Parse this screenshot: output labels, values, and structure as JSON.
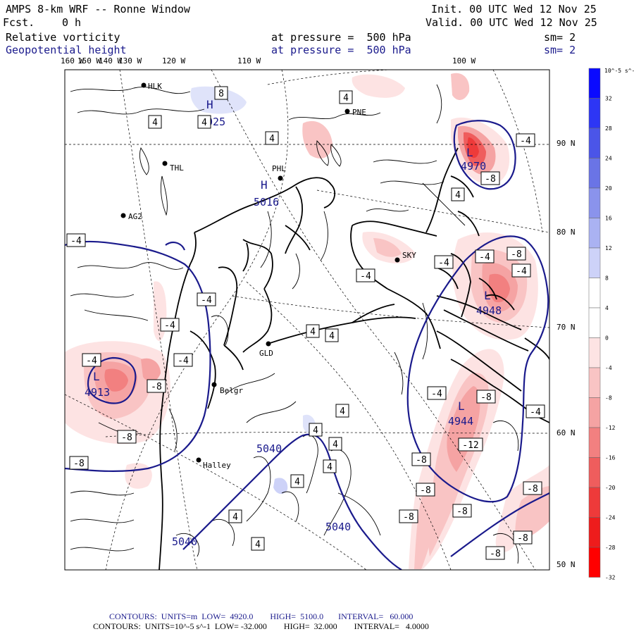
{
  "header": {
    "model": "AMPS 8-km WRF -- Ronne Window",
    "init": "Init. 00 UTC Wed 12 Nov 25",
    "fcst_label": "Fcst.",
    "fcst_value": "0 h",
    "valid": "Valid. 00 UTC Wed 12 Nov 25",
    "field1": {
      "name": "Relative vorticity",
      "level": "at pressure =  500 hPa",
      "sm": "sm= 2"
    },
    "field2": {
      "name": "Geopotential height",
      "level": "at pressure =  500 hPa",
      "sm": "sm= 2"
    }
  },
  "lon_labels": [
    {
      "text": "160 W"
    },
    {
      "text": "150 W"
    },
    {
      "text": "140 W"
    },
    {
      "text": "130 W"
    },
    {
      "text": "120 W"
    },
    {
      "text": "110 W"
    },
    {
      "text": "100 W"
    }
  ],
  "lat_labels": [
    "90 N",
    "80 N",
    "70 N",
    "60 N",
    "50 N"
  ],
  "stations": [
    {
      "id": "HLK"
    },
    {
      "id": "PNE"
    },
    {
      "id": "THL"
    },
    {
      "id": "PHL"
    },
    {
      "id": "AG2"
    },
    {
      "id": "SKY"
    },
    {
      "id": "GLD"
    },
    {
      "id": "Belgr"
    },
    {
      "id": "Halley"
    }
  ],
  "pressure_centers": [
    {
      "letter": "H",
      "value": "5025"
    },
    {
      "letter": "H",
      "value": "5016"
    },
    {
      "letter": "L",
      "value": "4913"
    },
    {
      "letter": "L",
      "value": "4944"
    },
    {
      "letter": "L",
      "value": "4948"
    },
    {
      "letter": "L",
      "value": "4970"
    }
  ],
  "height_labels": [
    "5040",
    "5040",
    "5040"
  ],
  "vort_labels": [
    "8",
    "4",
    "4",
    "4",
    "4",
    "4",
    "-4",
    "-4",
    "-4",
    "-4",
    "-4",
    "-4",
    "-4",
    "-4",
    "-8",
    "-8",
    "-8",
    "-8",
    "-8",
    "-8",
    "-8",
    "-8",
    "-8",
    "-8",
    "-12",
    "4",
    "4",
    "4",
    "4",
    "4",
    "4",
    "4",
    "4",
    "4",
    "-4",
    "-8",
    "-4",
    "-4",
    "-8",
    "-8",
    "-4"
  ],
  "colorbar": {
    "unit": "10^-5 s^-1",
    "ticks": [
      "32",
      "28",
      "24",
      "20",
      "16",
      "12",
      "8",
      "4",
      "0",
      "-4",
      "-8",
      "-12",
      "-16",
      "-20",
      "-24",
      "-28",
      "-32"
    ],
    "colors": [
      "#0a0aff",
      "#2d36f5",
      "#4b55e8",
      "#6a74e6",
      "#8a93ec",
      "#aab2f2",
      "#cdd2f8",
      "#ffffff",
      "#ffffff",
      "#fde3e3",
      "#f9c4c4",
      "#f5a3a3",
      "#f28080",
      "#ef5d5d",
      "#ee3a3a",
      "#ee1c1c",
      "#ff0000"
    ]
  },
  "footer": {
    "line1": "CONTOURS:  UNITS=m  LOW=  4920.0        HIGH=  5100.0       INTERVAL=   60.000",
    "line2": "CONTOURS:  UNITS=10^-5 s^-1  LOW= -32.000        HIGH=  32.000        INTERVAL=   4.0000"
  }
}
